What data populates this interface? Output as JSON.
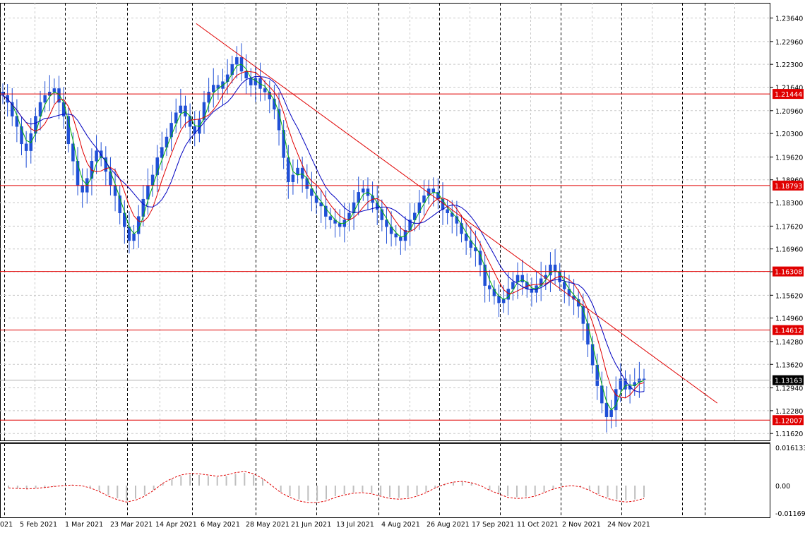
{
  "chart_data": [
    {
      "type": "candlestick",
      "title": "",
      "y_ticks": [
        "1.23640",
        "1.22960",
        "1.22300",
        "1.21640",
        "1.20960",
        "1.20300",
        "1.19620",
        "1.18960",
        "1.18300",
        "1.17620",
        "1.16960",
        "1.16300",
        "1.15620",
        "1.14960",
        "1.14280",
        "1.13620",
        "1.12940",
        "1.12280",
        "1.11620"
      ],
      "ylim": [
        1.1142,
        1.2408
      ],
      "x_labels": [
        "5 Feb 2021",
        "1 Mar 2021",
        "23 Mar 2021",
        "14 Apr 2021",
        "6 May 2021",
        "28 May 2021",
        "21 Jun 2021",
        "13 Jul 2021",
        "4 Aug 2021",
        "26 Aug 2021",
        "17 Sep 2021",
        "11 Oct 2021",
        "2 Nov 2021",
        "24 Nov 2021"
      ],
      "x_label_partial": "021",
      "horizontal_levels": [
        {
          "label": "1.21444",
          "value": 1.21444
        },
        {
          "label": "1.18793",
          "value": 1.18793
        },
        {
          "label": "1.16308",
          "value": 1.16308
        },
        {
          "label": "1.14612",
          "value": 1.14612
        },
        {
          "label": "1.12007",
          "value": 1.12007
        }
      ],
      "current_price": {
        "label": "1.13163",
        "value": 1.13163
      },
      "trendline": {
        "start": {
          "x": "2021-04-30",
          "y": 1.2348
        },
        "end": {
          "x": "2022-01-11",
          "y": 1.125
        }
      },
      "series": [
        {
          "kind": "moving-average",
          "color": "#00b000"
        },
        {
          "kind": "moving-average",
          "color": "#e00000"
        },
        {
          "kind": "moving-average",
          "color": "#0000c0"
        }
      ],
      "candles_close": [
        1.214,
        1.212,
        1.208,
        1.205,
        1.2,
        1.198,
        1.203,
        1.208,
        1.212,
        1.214,
        1.215,
        1.216,
        1.212,
        1.208,
        1.2,
        1.195,
        1.188,
        1.186,
        1.19,
        1.195,
        1.198,
        1.196,
        1.192,
        1.188,
        1.185,
        1.18,
        1.176,
        1.172,
        1.174,
        1.179,
        1.184,
        1.188,
        1.191,
        1.196,
        1.199,
        1.202,
        1.206,
        1.209,
        1.211,
        1.208,
        1.205,
        1.203,
        1.207,
        1.212,
        1.215,
        1.217,
        1.216,
        1.218,
        1.22,
        1.223,
        1.225,
        1.221,
        1.219,
        1.217,
        1.219,
        1.216,
        1.215,
        1.213,
        1.21,
        1.204,
        1.196,
        1.189,
        1.191,
        1.193,
        1.19,
        1.187,
        1.185,
        1.183,
        1.182,
        1.179,
        1.178,
        1.177,
        1.176,
        1.178,
        1.18,
        1.183,
        1.186,
        1.187,
        1.185,
        1.183,
        1.181,
        1.178,
        1.176,
        1.174,
        1.173,
        1.172,
        1.175,
        1.178,
        1.18,
        1.183,
        1.185,
        1.187,
        1.186,
        1.184,
        1.181,
        1.18,
        1.179,
        1.177,
        1.174,
        1.172,
        1.17,
        1.169,
        1.165,
        1.159,
        1.158,
        1.156,
        1.154,
        1.155,
        1.158,
        1.16,
        1.162,
        1.16,
        1.158,
        1.157,
        1.159,
        1.161,
        1.162,
        1.165,
        1.163,
        1.16,
        1.158,
        1.156,
        1.155,
        1.153,
        1.148,
        1.142,
        1.136,
        1.13,
        1.125,
        1.121,
        1.123,
        1.129,
        1.132,
        1.129,
        1.13,
        1.131,
        1.132,
        1.1316
      ]
    },
    {
      "type": "histogram",
      "y_ticks": [
        "0.016133",
        "0.00",
        "-0.011696"
      ],
      "ylim": [
        -0.0135,
        0.018
      ],
      "signal_color": "#e00000",
      "bar_color": "#bfbfbf",
      "signal_line": [
        -0.001,
        -0.0012,
        -0.0014,
        -0.0012,
        -0.0008,
        -0.0004,
        0.0,
        0.0002,
        0.0,
        -0.001,
        -0.0025,
        -0.0045,
        -0.006,
        -0.007,
        -0.0062,
        -0.0045,
        -0.002,
        0.001,
        0.003,
        0.0045,
        0.0052,
        0.005,
        0.0045,
        0.004,
        0.0045,
        0.0055,
        0.006,
        0.005,
        0.003,
        0.0,
        -0.003,
        -0.005,
        -0.0065,
        -0.0072,
        -0.0072,
        -0.0065,
        -0.005,
        -0.004,
        -0.0032,
        -0.003,
        -0.0035,
        -0.0045,
        -0.0055,
        -0.0058,
        -0.0055,
        -0.0045,
        -0.003,
        -0.001,
        0.0005,
        0.0015,
        0.0018,
        0.0012,
        0.0,
        -0.002,
        -0.0035,
        -0.005,
        -0.0055,
        -0.0052,
        -0.0045,
        -0.003,
        -0.0015,
        -0.0005,
        0.0,
        -0.0005,
        -0.002,
        -0.004,
        -0.0055,
        -0.0065,
        -0.007,
        -0.0065,
        -0.0055
      ]
    }
  ]
}
